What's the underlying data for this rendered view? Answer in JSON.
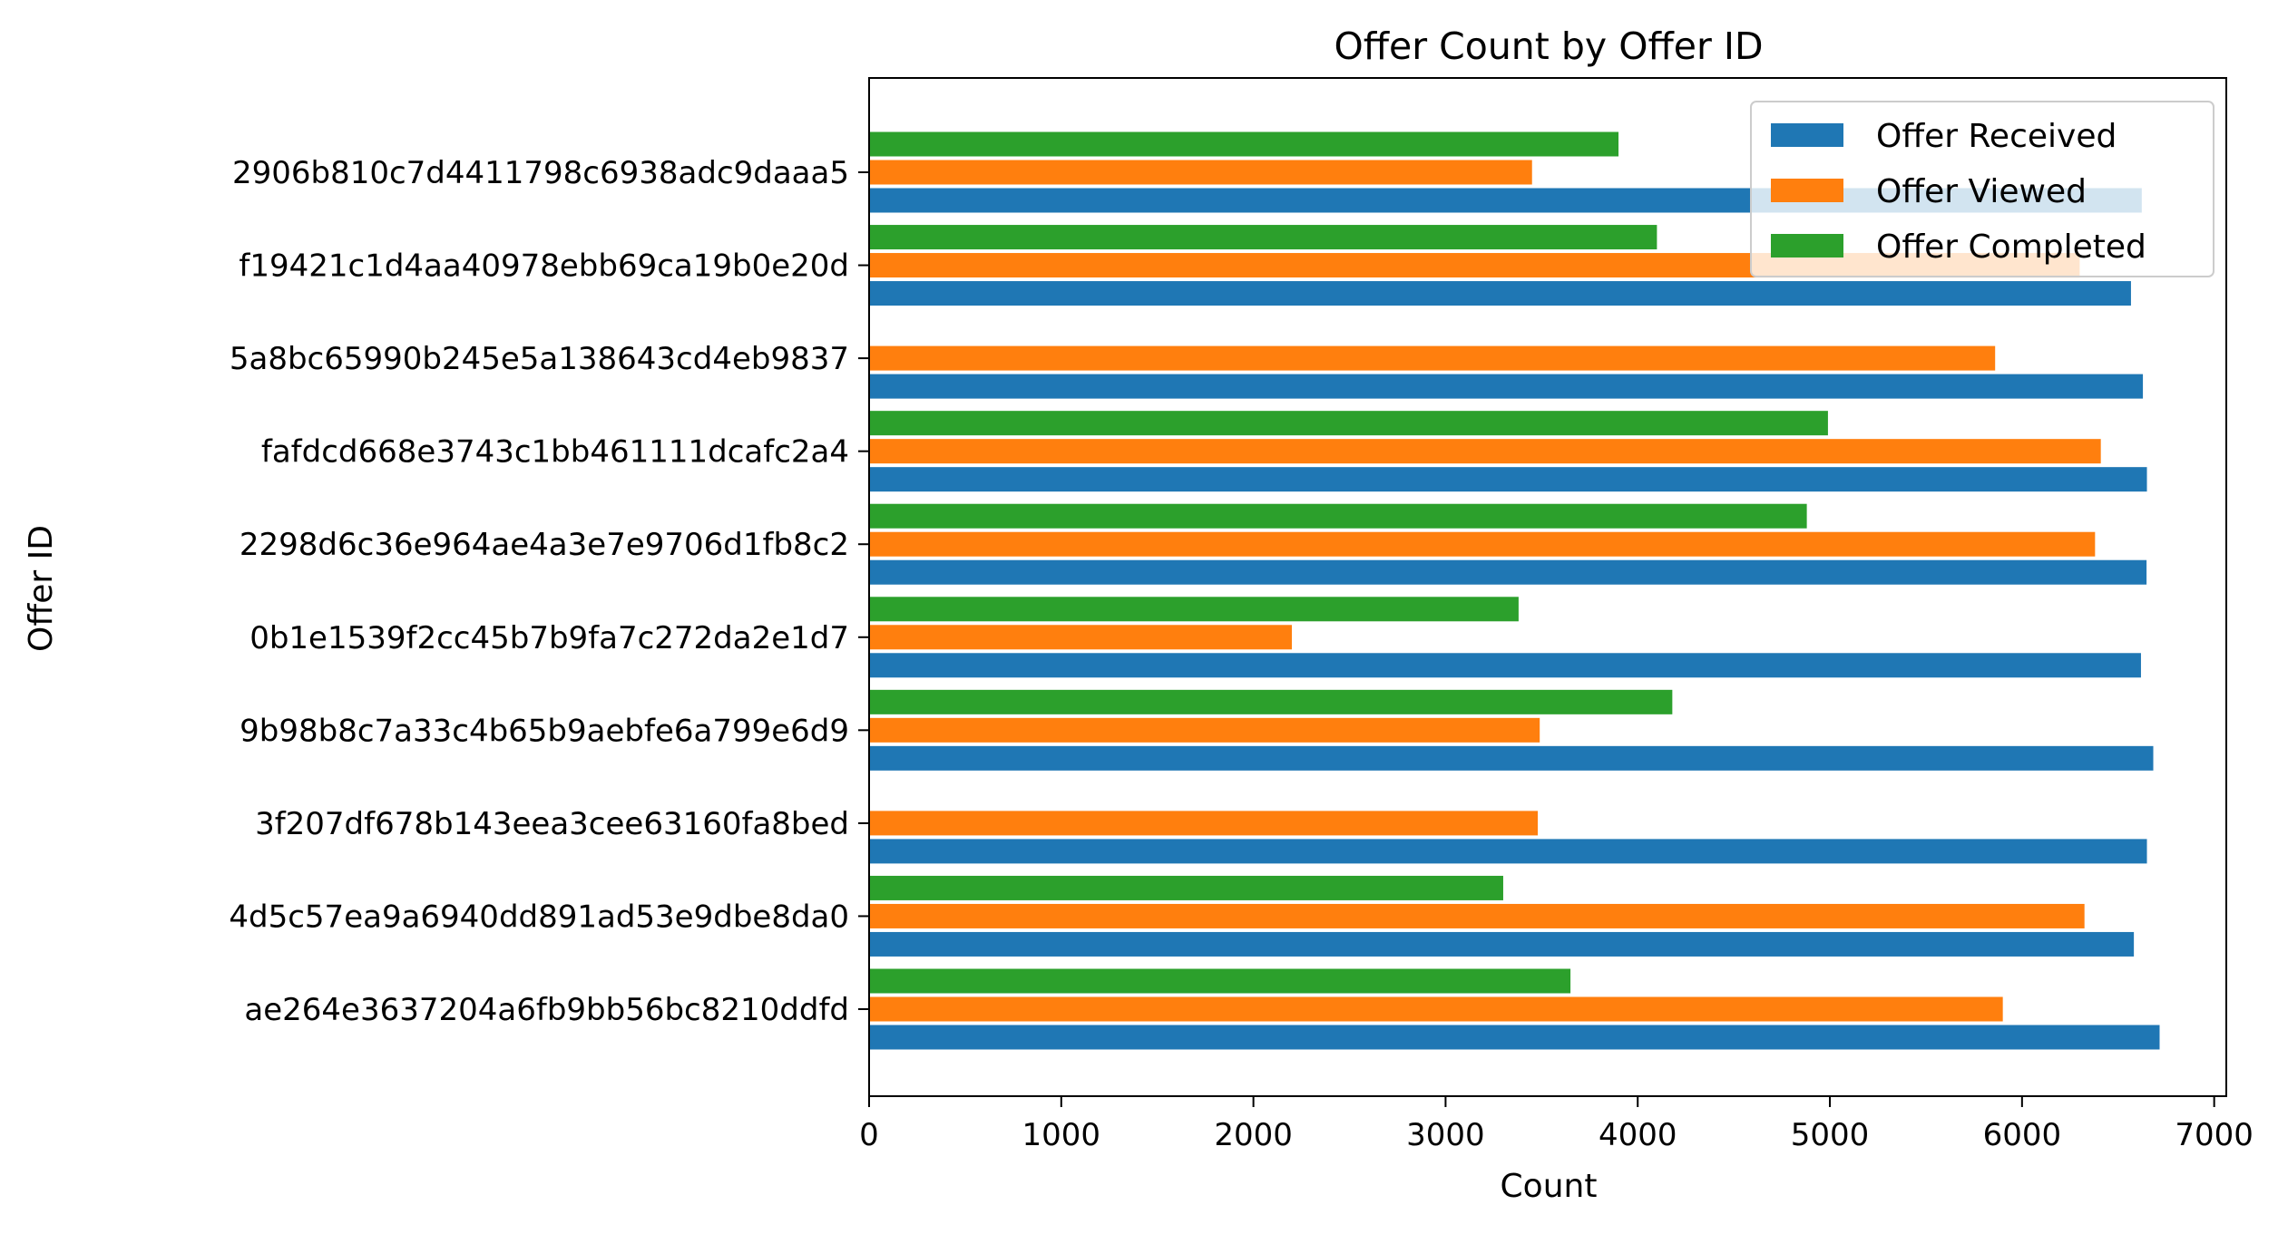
{
  "chart_data": {
    "type": "bar",
    "orientation": "horizontal",
    "title": "Offer Count by Offer ID",
    "xlabel": "Count",
    "ylabel": "Offer ID",
    "xlim": [
      0,
      7000
    ],
    "xticks": [
      "0",
      "1000",
      "2000",
      "3000",
      "4000",
      "5000",
      "6000",
      "7000"
    ],
    "grid": false,
    "legend_position": "top-right",
    "categories": [
      "ae264e3637204a6fb9bb56bc8210ddfd",
      "4d5c57ea9a6940dd891ad53e9dbe8da0",
      "3f207df678b143eea3cee63160fa8bed",
      "9b98b8c7a33c4b65b9aebfe6a799e6d9",
      "0b1e1539f2cc45b7b9fa7c272da2e1d7",
      "2298d6c36e964ae4a3e7e9706d1fb8c2",
      "fafdcd668e3743c1bb461111dcafc2a4",
      "5a8bc65990b245e5a138643cd4eb9837",
      "f19421c1d4aa40978ebb69ca19b0e20d",
      "2906b810c7d4411798c6938adc9daaa5"
    ],
    "series": [
      {
        "name": "Offer Received",
        "color": "#1f77b4",
        "values": [
          6716,
          6582,
          6650,
          6683,
          6619,
          6648,
          6650,
          6629,
          6567,
          6623
        ]
      },
      {
        "name": "Offer Viewed",
        "color": "#ff7f0e",
        "values": [
          5900,
          6325,
          3480,
          3490,
          2200,
          6380,
          6410,
          5860,
          6300,
          3450
        ]
      },
      {
        "name": "Offer Completed",
        "color": "#2ca02c",
        "values": [
          3650,
          3300,
          0,
          4180,
          3380,
          4880,
          4990,
          0,
          4100,
          3900
        ]
      }
    ]
  }
}
